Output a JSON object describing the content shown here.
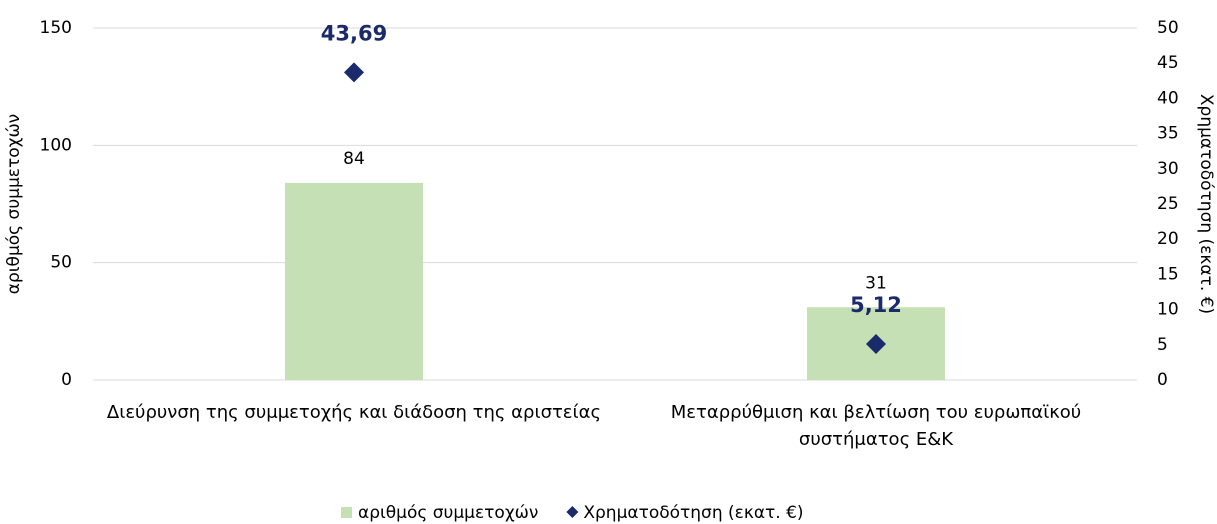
{
  "chart_data": {
    "type": "combo",
    "categories": [
      "Διεύρυνση της συμμετοχής και διάδοση της αριστείας",
      "Μεταρρύθμιση και βελτίωση του ευρωπαϊκού συστήματος Ε&Κ"
    ],
    "ylabel": "αριθμός συμμετοχών",
    "y2label": "Χρηματοδότηση (εκατ. €)",
    "ylim": [
      0,
      150
    ],
    "yticks": [
      0,
      50,
      100,
      150
    ],
    "y2lim": [
      0,
      50
    ],
    "y2ticks": [
      0,
      5,
      10,
      15,
      20,
      25,
      30,
      35,
      40,
      45,
      50
    ],
    "grid": true,
    "legend": "bottom",
    "series": [
      {
        "name": "αριθμός συμμετοχών",
        "type": "bar",
        "color": "#c5e0b4",
        "values": [
          84,
          31
        ]
      },
      {
        "name": "Χρηματοδότηση (εκατ. €)",
        "type": "scatter",
        "axis": "y2",
        "color": "#1b2a6b",
        "values": [
          43.69,
          5.12
        ],
        "value_labels": [
          "43,69",
          "5,12"
        ]
      }
    ]
  }
}
